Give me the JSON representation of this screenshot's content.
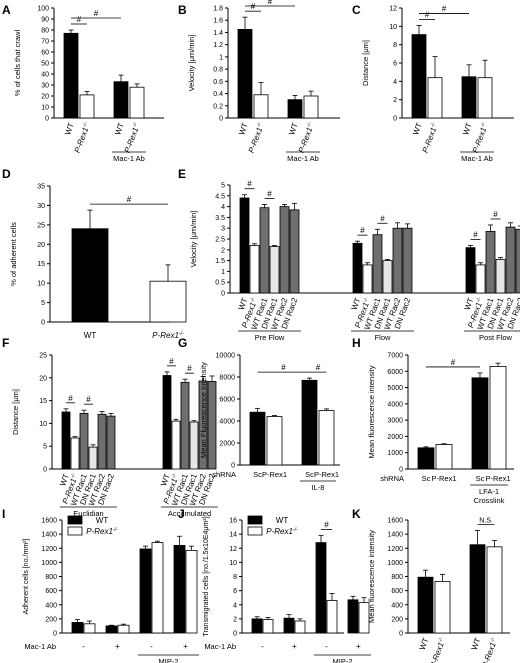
{
  "figure": "multi-panel bar charts",
  "chart_data": [
    {
      "panel": "A",
      "type": "bar",
      "ylabel": "% of cells that crawl",
      "ylim": [
        0,
        100
      ],
      "yticks": [
        0,
        10,
        20,
        30,
        40,
        50,
        60,
        70,
        80,
        90,
        100
      ],
      "categories": [
        "WT",
        "P-Rex1-/-",
        "WT",
        "P-Rex1-/-"
      ],
      "values": [
        77,
        21,
        33,
        28
      ],
      "errors": [
        3,
        3,
        6,
        3
      ],
      "fills": [
        "black",
        "white",
        "black",
        "white"
      ],
      "italic": [
        false,
        true,
        false,
        true
      ],
      "groups": [
        {
          "label": "Mac-1 Ab",
          "from": 2,
          "to": 3
        }
      ],
      "sig": [
        {
          "from": 0,
          "to": 1,
          "label": "#"
        },
        {
          "from": 0,
          "to": 2,
          "label": "#"
        }
      ]
    },
    {
      "panel": "B",
      "type": "bar",
      "ylabel": "Velocity [μm/min]",
      "ylim": [
        0,
        1.8
      ],
      "yticks": [
        "0",
        "0.2",
        "0.4",
        "0.6",
        "0.8",
        "1",
        "1.2",
        "1.4",
        "1.6",
        "1.8"
      ],
      "categories": [
        "WT",
        "P-Rex1-/-",
        "WT",
        "P-Rex1-/-"
      ],
      "values": [
        1.45,
        0.38,
        0.3,
        0.36
      ],
      "errors": [
        0.2,
        0.2,
        0.07,
        0.08
      ],
      "fills": [
        "black",
        "white",
        "black",
        "white"
      ],
      "italic": [
        false,
        true,
        false,
        true
      ],
      "groups": [
        {
          "label": "Mac-1 Ab",
          "from": 2,
          "to": 3
        }
      ],
      "sig": [
        {
          "from": 0,
          "to": 1,
          "label": "#"
        },
        {
          "from": 0,
          "to": 2,
          "label": "#"
        }
      ]
    },
    {
      "panel": "C",
      "type": "bar",
      "ylabel": "Distance [μm]",
      "ylim": [
        0,
        12
      ],
      "yticks": [
        "0",
        "2",
        "4",
        "6",
        "8",
        "10",
        "12"
      ],
      "categories": [
        "WT",
        "P-Rex1-/-",
        "WT",
        "P-Rex1-/-"
      ],
      "values": [
        9.1,
        4.4,
        4.5,
        4.4
      ],
      "errors": [
        1.0,
        2.3,
        1.3,
        1.9
      ],
      "fills": [
        "black",
        "white",
        "black",
        "white"
      ],
      "italic": [
        false,
        true,
        false,
        true
      ],
      "groups": [
        {
          "label": "Mac-1 Ab",
          "from": 2,
          "to": 3
        }
      ],
      "sig": [
        {
          "from": 0,
          "to": 1,
          "label": "#"
        },
        {
          "from": 0,
          "to": 2,
          "label": "#"
        }
      ]
    },
    {
      "panel": "D",
      "type": "bar",
      "ylabel": "% of adherent cells",
      "ylim": [
        0,
        35
      ],
      "yticks": [
        "0",
        "5",
        "10",
        "15",
        "20",
        "25",
        "30",
        "35"
      ],
      "categories": [
        "WT",
        "P-Rex1-/-"
      ],
      "values": [
        24,
        10.5
      ],
      "errors": [
        4.8,
        4.2
      ],
      "fills": [
        "black",
        "white"
      ],
      "italic": [
        false,
        true
      ],
      "groups": [],
      "sig": [
        {
          "from": 0,
          "to": 1,
          "label": "#"
        }
      ]
    },
    {
      "panel": "E",
      "type": "bar",
      "ylabel": "Velocity [μm/min]",
      "ylim": [
        0,
        5
      ],
      "yticks": [
        "0",
        "0.5",
        "1",
        "1.5",
        "2",
        "2.5",
        "3",
        "3.5",
        "4",
        "4.5",
        "5"
      ],
      "categories": [
        "WT",
        "P-Rex1-/-",
        "WT Rac1",
        "DN Rac1",
        "WT Rac2",
        "DN Rac2",
        "WT",
        "P-Rex1-/-",
        "WT Rac1",
        "DN Rac1",
        "WT Rac2",
        "DN Rac2",
        "WT",
        "P-Rex1-/-",
        "WT Rac1",
        "DN Rac1",
        "WT Rac2",
        "DN Rac2"
      ],
      "values": [
        4.4,
        2.2,
        3.95,
        2.15,
        4.0,
        3.85,
        2.3,
        1.3,
        2.7,
        1.5,
        3.0,
        3.0,
        2.1,
        1.3,
        2.85,
        1.55,
        3.05,
        2.95
      ],
      "errors": [
        0.15,
        0.08,
        0.15,
        0.05,
        0.1,
        0.3,
        0.1,
        0.1,
        0.25,
        0.05,
        0.25,
        0.2,
        0.1,
        0.1,
        0.3,
        0.1,
        0.2,
        0.15
      ],
      "fills": [
        "black",
        "white",
        "gray",
        "lightgray",
        "gray",
        "gray",
        "black",
        "white",
        "gray",
        "lightgray",
        "gray",
        "gray",
        "black",
        "white",
        "gray",
        "lightgray",
        "gray",
        "gray"
      ],
      "italic": [
        false,
        true,
        false,
        false,
        false,
        false,
        false,
        true,
        false,
        false,
        false,
        false,
        false,
        true,
        false,
        false,
        false,
        false
      ],
      "group_gap": 6,
      "groups": [
        {
          "label": "Pre Flow",
          "from": 0,
          "to": 5
        },
        {
          "label": "Flow",
          "from": 6,
          "to": 11
        },
        {
          "label": "Post Flow",
          "from": 12,
          "to": 17
        }
      ],
      "sig": [
        {
          "from": 0,
          "to": 1,
          "label": "#"
        },
        {
          "from": 2,
          "to": 3,
          "label": "#"
        },
        {
          "from": 6,
          "to": 7,
          "label": "#"
        },
        {
          "from": 8,
          "to": 9,
          "label": "#"
        },
        {
          "from": 12,
          "to": 13,
          "label": "#"
        },
        {
          "from": 14,
          "to": 15,
          "label": "#"
        }
      ]
    },
    {
      "panel": "F",
      "type": "bar",
      "ylabel": "Distance [μm]",
      "ylim": [
        0,
        25
      ],
      "yticks": [
        "0",
        "5",
        "10",
        "15",
        "20",
        "25"
      ],
      "categories": [
        "WT",
        "P-Rex1-/-",
        "WT Rac1",
        "DN Rac1",
        "WT Rac2",
        "DN Rac2",
        "WT",
        "P-Rex1-/-",
        "WT Rac1",
        "DN Rac1",
        "WT Rac2",
        "DN Rac2"
      ],
      "values": [
        12.5,
        6.8,
        12.2,
        4.8,
        12.0,
        11.6,
        20.5,
        10.5,
        19.0,
        10.3,
        19.3,
        19.2
      ],
      "errors": [
        0.7,
        0.3,
        0.7,
        0.5,
        0.6,
        0.6,
        0.8,
        0.4,
        0.7,
        0.3,
        1.0,
        1.2
      ],
      "fills": [
        "black",
        "white",
        "gray",
        "lightgray",
        "gray",
        "gray",
        "black",
        "white",
        "gray",
        "lightgray",
        "gray",
        "gray"
      ],
      "italic": [
        false,
        true,
        false,
        false,
        false,
        false,
        false,
        true,
        false,
        false,
        false,
        false
      ],
      "group_gap": 6,
      "groups": [
        {
          "label": "Euclidian",
          "from": 0,
          "to": 5
        },
        {
          "label": "Accumulated",
          "from": 6,
          "to": 11
        }
      ],
      "sig": [
        {
          "from": 0,
          "to": 1,
          "label": "#"
        },
        {
          "from": 2,
          "to": 3,
          "label": "#"
        },
        {
          "from": 6,
          "to": 7,
          "label": "#"
        },
        {
          "from": 8,
          "to": 9,
          "label": "#"
        }
      ]
    },
    {
      "panel": "G",
      "type": "bar",
      "ylabel": "Mean Fluorescence Intensity",
      "ylim": [
        0,
        10000
      ],
      "yticks": [
        "0",
        "2000",
        "4000",
        "6000",
        "8000",
        "10000"
      ],
      "row_label": "shRNA",
      "categories": [
        "Sc",
        "P-Rex1",
        "Sc",
        "P-Rex1"
      ],
      "values": [
        4800,
        4400,
        7700,
        4950
      ],
      "errors": [
        350,
        100,
        200,
        150
      ],
      "fills": [
        "black",
        "white",
        "black",
        "white"
      ],
      "italic": [
        false,
        false,
        false,
        false
      ],
      "horizontal_labels": true,
      "groups": [
        {
          "label": "IL-8",
          "from": 2,
          "to": 3
        }
      ],
      "sig": [
        {
          "from": 0,
          "to": 2,
          "label": "#"
        },
        {
          "from": 2,
          "to": 3,
          "label": "#"
        }
      ]
    },
    {
      "panel": "H",
      "type": "bar",
      "ylabel": "Mean fluorescence intensity",
      "ylim": [
        0,
        7000
      ],
      "yticks": [
        "0",
        "1000",
        "2000",
        "3000",
        "4000",
        "5000",
        "6000",
        "7000"
      ],
      "row_label": "shRNA",
      "categories": [
        "Sc",
        "P-Rex1",
        "Sc",
        "P-Rex1"
      ],
      "values": [
        1300,
        1500,
        5600,
        6300
      ],
      "errors": [
        60,
        50,
        300,
        200
      ],
      "fills": [
        "black",
        "white",
        "black",
        "white"
      ],
      "italic": [
        false,
        false,
        false,
        false
      ],
      "horizontal_labels": true,
      "groups": [
        {
          "label": "LFA-1",
          "label2": "Crosslink",
          "from": 2,
          "to": 3
        }
      ],
      "sig": [
        {
          "from": 0,
          "to": 2,
          "label": "#"
        }
      ]
    },
    {
      "panel": "I",
      "type": "bar",
      "ylabel": "Adherent cells [no./mm²]",
      "ylim": [
        0,
        1600
      ],
      "yticks": [
        "0",
        "200",
        "400",
        "600",
        "800",
        "1000",
        "1200",
        "1400",
        "1600"
      ],
      "categories": [
        "WT",
        "P-Rex1-/-",
        "WT",
        "P-Rex1-/-",
        "WT",
        "P-Rex1-/-",
        "WT",
        "P-Rex1-/-"
      ],
      "values": [
        150,
        130,
        100,
        110,
        1190,
        1280,
        1240,
        1170
      ],
      "errors": [
        40,
        40,
        10,
        15,
        40,
        20,
        130,
        60
      ],
      "fills": [
        "black",
        "white",
        "black",
        "white",
        "black",
        "white",
        "black",
        "white"
      ],
      "legend": [
        {
          "label": "WT",
          "fill": "black",
          "italic": false
        },
        {
          "label": "P-Rex1-/-",
          "fill": "white",
          "italic": true
        }
      ],
      "row_label": "Mac-1 Ab",
      "cond_labels": [
        "-",
        "+",
        "-",
        "+"
      ],
      "groups": [
        {
          "label": "MIP-2",
          "from": 4,
          "to": 7
        }
      ],
      "sig": []
    },
    {
      "panel": "J",
      "type": "bar",
      "ylabel": "Transmigrated cells [no./1.5x10E4μm²]",
      "ylim": [
        0,
        16
      ],
      "yticks": [
        "0",
        "2",
        "4",
        "6",
        "8",
        "10",
        "12",
        "14",
        "16"
      ],
      "categories": [
        "WT",
        "P-Rex1-/-",
        "WT",
        "P-Rex1-/-",
        "WT",
        "P-Rex1-/-",
        "WT",
        "P-Rex1-/-"
      ],
      "values": [
        2.0,
        1.9,
        2.1,
        1.7,
        12.8,
        4.6,
        4.7,
        4.3
      ],
      "errors": [
        0.3,
        0.3,
        0.5,
        0.3,
        1.0,
        1.0,
        0.5,
        0.7
      ],
      "fills": [
        "black",
        "white",
        "black",
        "white",
        "black",
        "white",
        "black",
        "white"
      ],
      "legend": [
        {
          "label": "WT",
          "fill": "black",
          "italic": false
        },
        {
          "label": "P-Rex1-/-",
          "fill": "white",
          "italic": true
        }
      ],
      "row_label": "Mac-1 Ab",
      "cond_labels": [
        "-",
        "+",
        "-",
        "+"
      ],
      "groups": [
        {
          "label": "MIP-2",
          "from": 4,
          "to": 7
        }
      ],
      "sig": [
        {
          "from": 4,
          "to": 5,
          "label": "#"
        }
      ]
    },
    {
      "panel": "K",
      "type": "bar",
      "ylabel": "Mean fluorescence intensity",
      "ylim": [
        0,
        1600
      ],
      "yticks": [
        "0",
        "200",
        "400",
        "600",
        "800",
        "1000",
        "1200",
        "1400",
        "1600"
      ],
      "categories": [
        "WT",
        "P-Rex1-/-",
        "WT",
        "P-Rex1-/-"
      ],
      "values": [
        790,
        730,
        1250,
        1220
      ],
      "errors": [
        100,
        100,
        200,
        90
      ],
      "fills": [
        "black",
        "white",
        "black",
        "white"
      ],
      "italic": [
        false,
        true,
        false,
        true
      ],
      "groups": [
        {
          "label": "MIP-2",
          "from": 2,
          "to": 3
        }
      ],
      "sig": [
        {
          "from": 2,
          "to": 3,
          "label": "N.S."
        }
      ]
    }
  ]
}
